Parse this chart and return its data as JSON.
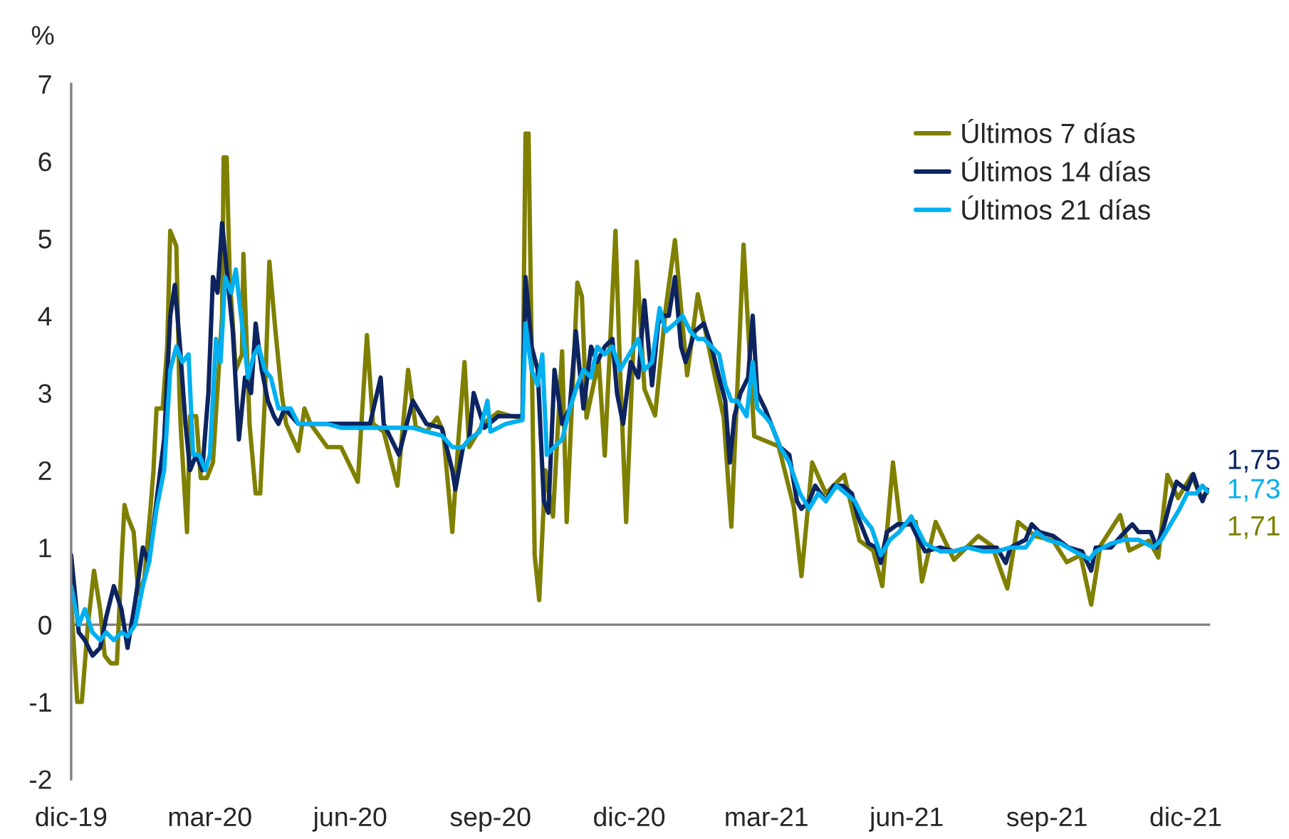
{
  "chart_data": {
    "type": "line",
    "ylabel": "%",
    "xlim": [
      "2019-12-01",
      "2021-12-17"
    ],
    "ylim": [
      -2,
      7
    ],
    "yticks": [
      -2,
      -1,
      0,
      1,
      2,
      3,
      4,
      5,
      6,
      7
    ],
    "xticks": [
      {
        "value": "2019-12-01",
        "label": "dic-19"
      },
      {
        "value": "2020-03-01",
        "label": "mar-20"
      },
      {
        "value": "2020-06-01",
        "label": "jun-20"
      },
      {
        "value": "2020-09-01",
        "label": "sep-20"
      },
      {
        "value": "2020-12-01",
        "label": "dic-20"
      },
      {
        "value": "2021-03-01",
        "label": "mar-21"
      },
      {
        "value": "2021-06-01",
        "label": "jun-21"
      },
      {
        "value": "2021-09-01",
        "label": "sep-21"
      },
      {
        "value": "2021-12-01",
        "label": "dic-21"
      }
    ],
    "grid": false,
    "ref_lines": [
      {
        "axis": "y",
        "value": 0,
        "color": "#7f7f7f",
        "line_style": "solid"
      }
    ],
    "legend": "top right",
    "line_style": "solid",
    "marker": "none",
    "series": [
      {
        "name": "Últimos 7 días",
        "color": "#7f7f00",
        "x": [
          "2019-12-01",
          "2019-12-05",
          "2019-12-08",
          "2019-12-12",
          "2019-12-16",
          "2019-12-20",
          "2019-12-23",
          "2019-12-27",
          "2019-12-31",
          "2020-01-03",
          "2020-01-05",
          "2020-01-07",
          "2020-01-11",
          "2020-01-14",
          "2020-01-18",
          "2020-01-22",
          "2020-01-24",
          "2020-01-26",
          "2020-01-30",
          "2020-02-02",
          "2020-02-04",
          "2020-02-08",
          "2020-02-10",
          "2020-02-11",
          "2020-02-15",
          "2020-02-17",
          "2020-02-21",
          "2020-02-24",
          "2020-02-28",
          "2020-03-03",
          "2020-03-09",
          "2020-03-10",
          "2020-03-12",
          "2020-03-14",
          "2020-03-18",
          "2020-03-22",
          "2020-03-23",
          "2020-03-27",
          "2020-03-31",
          "2020-04-03",
          "2020-04-06",
          "2020-04-09",
          "2020-04-13",
          "2020-04-17",
          "2020-04-20",
          "2020-04-28",
          "2020-05-02",
          "2020-05-06",
          "2020-05-17",
          "2020-05-26",
          "2020-06-06",
          "2020-06-12",
          "2020-06-16",
          "2020-06-23",
          "2020-07-02",
          "2020-07-09",
          "2020-07-14",
          "2020-07-21",
          "2020-07-28",
          "2020-08-01",
          "2020-08-07",
          "2020-08-11",
          "2020-08-15",
          "2020-08-18",
          "2020-08-27",
          "2020-09-06",
          "2020-09-15",
          "2020-09-22",
          "2020-09-24",
          "2020-09-26",
          "2020-09-27",
          "2020-09-30",
          "2020-10-03",
          "2020-10-07",
          "2020-10-12",
          "2020-10-18",
          "2020-10-21",
          "2020-10-28",
          "2020-10-31",
          "2020-11-03",
          "2020-11-11",
          "2020-11-15",
          "2020-11-22",
          "2020-11-25",
          "2020-11-29",
          "2020-12-06",
          "2020-12-11",
          "2020-12-18",
          "2020-12-25",
          "2020-12-31",
          "2021-01-08",
          "2021-01-15",
          "2021-01-24",
          "2021-02-01",
          "2021-02-06",
          "2021-02-14",
          "2021-02-21",
          "2021-03-09",
          "2021-03-19",
          "2021-03-24",
          "2021-03-31",
          "2021-04-09",
          "2021-04-21",
          "2021-05-01",
          "2021-05-10",
          "2021-05-16",
          "2021-05-23",
          "2021-05-28",
          "2021-06-07",
          "2021-06-11",
          "2021-06-20",
          "2021-07-02",
          "2021-07-18",
          "2021-07-27",
          "2021-08-06",
          "2021-08-13",
          "2021-08-24",
          "2021-09-05",
          "2021-09-14",
          "2021-09-23",
          "2021-09-30",
          "2021-10-06",
          "2021-10-19",
          "2021-10-25",
          "2021-11-07",
          "2021-11-13",
          "2021-11-19",
          "2021-11-26",
          "2021-12-05",
          "2021-12-11",
          "2021-12-15"
        ],
        "values": [
          0.3,
          -1.0,
          -1.0,
          0.0,
          0.7,
          0.2,
          -0.4,
          -0.5,
          -0.5,
          0.8,
          1.55,
          1.4,
          1.2,
          0.4,
          0.6,
          1.5,
          2.0,
          2.8,
          2.8,
          3.6,
          5.1,
          4.9,
          3.0,
          2.5,
          1.2,
          2.7,
          2.7,
          1.9,
          1.9,
          2.1,
          4.0,
          6.05,
          6.05,
          4.5,
          3.3,
          3.5,
          4.8,
          2.6,
          1.7,
          1.7,
          2.9,
          4.7,
          3.8,
          3.0,
          2.6,
          2.25,
          2.8,
          2.6,
          2.3,
          2.3,
          1.85,
          3.75,
          2.6,
          2.5,
          1.8,
          3.3,
          2.56,
          2.5,
          2.68,
          2.5,
          1.2,
          2.4,
          3.4,
          2.3,
          2.6,
          2.75,
          2.7,
          2.68,
          6.36,
          6.36,
          4.95,
          0.9,
          0.32,
          2.0,
          1.4,
          3.54,
          1.33,
          4.43,
          4.25,
          2.68,
          3.42,
          2.19,
          5.1,
          3.3,
          1.33,
          4.7,
          3.05,
          2.71,
          4.1,
          4.98,
          3.23,
          4.28,
          3.42,
          2.68,
          1.27,
          4.92,
          2.44,
          2.31,
          1.52,
          0.63,
          2.1,
          1.7,
          1.94,
          1.09,
          0.96,
          0.5,
          2.1,
          1.27,
          1.33,
          0.56,
          1.33,
          0.84,
          1.15,
          1.02,
          0.47,
          1.33,
          1.15,
          1.09,
          0.81,
          0.9,
          0.26,
          1.02,
          1.42,
          0.96,
          1.09,
          0.87,
          1.94,
          1.64,
          1.94,
          1.64,
          1.71
        ]
      },
      {
        "name": "Últimos 14 días",
        "color": "#0d2460",
        "x": [
          "2019-12-01",
          "2019-12-06",
          "2019-12-10",
          "2019-12-15",
          "2019-12-20",
          "2019-12-24",
          "2019-12-29",
          "2020-01-03",
          "2020-01-07",
          "2020-01-12",
          "2020-01-17",
          "2020-01-21",
          "2020-01-26",
          "2020-01-31",
          "2020-02-04",
          "2020-02-07",
          "2020-02-10",
          "2020-02-14",
          "2020-02-17",
          "2020-02-21",
          "2020-02-25",
          "2020-02-29",
          "2020-03-03",
          "2020-03-06",
          "2020-03-09",
          "2020-03-13",
          "2020-03-16",
          "2020-03-20",
          "2020-03-24",
          "2020-03-28",
          "2020-03-31",
          "2020-04-04",
          "2020-04-08",
          "2020-04-12",
          "2020-04-15",
          "2020-04-19",
          "2020-04-28",
          "2020-05-08",
          "2020-06-14",
          "2020-06-21",
          "2020-06-23",
          "2020-07-03",
          "2020-07-12",
          "2020-07-21",
          "2020-07-31",
          "2020-08-07",
          "2020-08-09",
          "2020-08-14",
          "2020-08-18",
          "2020-08-21",
          "2020-08-28",
          "2020-09-06",
          "2020-09-15",
          "2020-09-22",
          "2020-09-24",
          "2020-09-28",
          "2020-10-02",
          "2020-10-06",
          "2020-10-09",
          "2020-10-13",
          "2020-10-18",
          "2020-10-23",
          "2020-10-27",
          "2020-11-01",
          "2020-11-06",
          "2020-11-10",
          "2020-11-15",
          "2020-11-20",
          "2020-11-23",
          "2020-11-27",
          "2020-12-02",
          "2020-12-07",
          "2020-12-11",
          "2020-12-16",
          "2020-12-20",
          "2020-12-23",
          "2020-12-27",
          "2020-12-31",
          "2021-01-04",
          "2021-01-07",
          "2021-01-13",
          "2021-01-19",
          "2021-01-24",
          "2021-01-29",
          "2021-02-02",
          "2021-02-05",
          "2021-02-08",
          "2021-02-12",
          "2021-02-17",
          "2021-02-20",
          "2021-02-23",
          "2021-02-28",
          "2021-03-04",
          "2021-03-10",
          "2021-03-16",
          "2021-03-21",
          "2021-03-24",
          "2021-03-29",
          "2021-04-02",
          "2021-04-09",
          "2021-04-14",
          "2021-04-20",
          "2021-04-26",
          "2021-04-30",
          "2021-05-07",
          "2021-05-12",
          "2021-05-15",
          "2021-05-19",
          "2021-05-26",
          "2021-06-04",
          "2021-06-09",
          "2021-06-13",
          "2021-06-23",
          "2021-07-02",
          "2021-07-11",
          "2021-07-21",
          "2021-07-30",
          "2021-08-05",
          "2021-08-08",
          "2021-08-18",
          "2021-08-22",
          "2021-08-27",
          "2021-09-05",
          "2021-09-15",
          "2021-09-24",
          "2021-09-30",
          "2021-10-03",
          "2021-10-13",
          "2021-10-22",
          "2021-10-27",
          "2021-10-31",
          "2021-11-08",
          "2021-11-12",
          "2021-11-17",
          "2021-11-21",
          "2021-11-25",
          "2021-11-28",
          "2021-12-02",
          "2021-12-06",
          "2021-12-10",
          "2021-12-12",
          "2021-12-15"
        ],
        "values": [
          0.9,
          -0.1,
          -0.2,
          -0.4,
          -0.3,
          0.1,
          0.5,
          0.2,
          -0.3,
          0.3,
          1.0,
          0.8,
          1.6,
          2.4,
          4.0,
          4.4,
          3.7,
          2.6,
          2.0,
          2.2,
          2.0,
          3.0,
          4.5,
          4.3,
          5.2,
          4.4,
          3.8,
          2.4,
          3.2,
          3.0,
          3.9,
          3.3,
          2.9,
          2.7,
          2.6,
          2.8,
          2.6,
          2.6,
          2.6,
          3.2,
          2.6,
          2.2,
          2.9,
          2.6,
          2.55,
          2.0,
          1.75,
          2.3,
          2.4,
          3.0,
          2.55,
          2.7,
          2.7,
          2.7,
          4.5,
          3.6,
          3.3,
          1.6,
          1.45,
          3.3,
          2.6,
          2.8,
          3.8,
          2.8,
          3.6,
          3.4,
          3.6,
          3.7,
          3.0,
          2.6,
          3.4,
          3.2,
          4.2,
          3.1,
          3.9,
          4.0,
          4.0,
          4.5,
          3.6,
          3.4,
          3.8,
          3.9,
          3.6,
          3.2,
          2.9,
          2.1,
          2.7,
          3.0,
          3.2,
          4.0,
          3.0,
          2.8,
          2.6,
          2.3,
          2.2,
          1.6,
          1.5,
          1.6,
          1.8,
          1.6,
          1.8,
          1.8,
          1.7,
          1.4,
          1.05,
          1.0,
          0.8,
          1.2,
          1.3,
          1.3,
          1.1,
          0.95,
          1.0,
          0.95,
          1.0,
          1.0,
          1.0,
          0.8,
          1.0,
          1.1,
          1.3,
          1.2,
          1.15,
          1.0,
          0.95,
          0.7,
          1.0,
          1.0,
          1.2,
          1.3,
          1.2,
          1.2,
          1.0,
          1.3,
          1.6,
          1.85,
          1.8,
          1.75,
          1.95,
          1.7,
          1.6,
          1.75
        ]
      },
      {
        "name": "Últimos 21 días",
        "color": "#00b0f0",
        "x": [
          "2019-12-01",
          "2019-12-06",
          "2019-12-10",
          "2019-12-15",
          "2019-12-20",
          "2019-12-24",
          "2019-12-29",
          "2020-01-03",
          "2020-01-07",
          "2020-01-12",
          "2020-01-17",
          "2020-01-21",
          "2020-01-26",
          "2020-01-31",
          "2020-02-04",
          "2020-02-08",
          "2020-02-12",
          "2020-02-16",
          "2020-02-19",
          "2020-02-23",
          "2020-02-27",
          "2020-03-01",
          "2020-03-05",
          "2020-03-08",
          "2020-03-11",
          "2020-03-15",
          "2020-03-18",
          "2020-03-22",
          "2020-03-26",
          "2020-03-30",
          "2020-04-02",
          "2020-04-06",
          "2020-04-10",
          "2020-04-15",
          "2020-04-23",
          "2020-04-28",
          "2020-05-08",
          "2020-05-17",
          "2020-05-26",
          "2020-06-05",
          "2020-06-14",
          "2020-06-23",
          "2020-07-03",
          "2020-07-12",
          "2020-07-21",
          "2020-07-31",
          "2020-08-07",
          "2020-08-14",
          "2020-08-18",
          "2020-08-25",
          "2020-08-30",
          "2020-09-01",
          "2020-09-11",
          "2020-09-22",
          "2020-09-24",
          "2020-09-28",
          "2020-10-02",
          "2020-10-05",
          "2020-10-08",
          "2020-10-13",
          "2020-10-18",
          "2020-10-23",
          "2020-10-28",
          "2020-11-01",
          "2020-11-06",
          "2020-11-10",
          "2020-11-15",
          "2020-11-20",
          "2020-11-25",
          "2020-12-01",
          "2020-12-07",
          "2020-12-11",
          "2020-12-16",
          "2020-12-21",
          "2020-12-25",
          "2020-12-31",
          "2021-01-05",
          "2021-01-10",
          "2021-01-15",
          "2021-01-19",
          "2021-01-24",
          "2021-01-29",
          "2021-02-02",
          "2021-02-06",
          "2021-02-10",
          "2021-02-16",
          "2021-02-20",
          "2021-02-23",
          "2021-02-28",
          "2021-03-04",
          "2021-03-10",
          "2021-03-16",
          "2021-03-23",
          "2021-03-29",
          "2021-04-04",
          "2021-04-09",
          "2021-04-16",
          "2021-04-22",
          "2021-04-28",
          "2021-05-03",
          "2021-05-09",
          "2021-05-15",
          "2021-05-21",
          "2021-05-27",
          "2021-06-04",
          "2021-06-13",
          "2021-06-23",
          "2021-07-02",
          "2021-07-11",
          "2021-07-21",
          "2021-07-30",
          "2021-08-08",
          "2021-08-18",
          "2021-08-25",
          "2021-09-01",
          "2021-09-10",
          "2021-09-19",
          "2021-09-29",
          "2021-10-03",
          "2021-10-13",
          "2021-10-22",
          "2021-10-31",
          "2021-11-10",
          "2021-11-15",
          "2021-11-21",
          "2021-11-27",
          "2021-12-02",
          "2021-12-08",
          "2021-12-12",
          "2021-12-15"
        ],
        "values": [
          0.5,
          0.0,
          0.2,
          -0.1,
          -0.2,
          -0.1,
          -0.2,
          -0.1,
          -0.15,
          0.0,
          0.5,
          0.8,
          1.5,
          2.0,
          3.3,
          3.6,
          3.4,
          3.5,
          2.2,
          2.2,
          2.0,
          2.2,
          3.7,
          3.4,
          4.5,
          4.3,
          4.6,
          3.9,
          3.2,
          3.5,
          3.6,
          3.3,
          3.2,
          2.8,
          2.8,
          2.6,
          2.6,
          2.6,
          2.55,
          2.55,
          2.55,
          2.55,
          2.55,
          2.55,
          2.5,
          2.45,
          2.3,
          2.3,
          2.4,
          2.5,
          2.9,
          2.5,
          2.6,
          2.65,
          3.9,
          3.3,
          3.1,
          3.5,
          2.2,
          2.3,
          2.4,
          2.8,
          3.1,
          3.3,
          3.2,
          3.6,
          3.5,
          3.6,
          3.3,
          3.5,
          3.7,
          3.3,
          3.4,
          4.1,
          3.8,
          3.9,
          4.0,
          3.8,
          3.7,
          3.7,
          3.6,
          3.5,
          3.1,
          2.9,
          2.9,
          2.7,
          3.4,
          2.8,
          2.7,
          2.6,
          2.3,
          2.1,
          1.7,
          1.5,
          1.7,
          1.6,
          1.8,
          1.7,
          1.6,
          1.4,
          1.25,
          0.9,
          1.1,
          1.2,
          1.4,
          1.05,
          0.95,
          0.95,
          1.0,
          0.95,
          0.95,
          1.0,
          1.0,
          1.2,
          1.1,
          1.05,
          0.95,
          0.85,
          0.95,
          1.05,
          1.1,
          1.1,
          1.0,
          1.1,
          1.3,
          1.5,
          1.7,
          1.7,
          1.8,
          1.73
        ]
      }
    ],
    "annotations": [
      {
        "text": "1,75",
        "x": "2021-12-15",
        "y": 1.75
      },
      {
        "text": "1,73",
        "x": "2021-12-15",
        "y": 1.73
      },
      {
        "text": "1,71",
        "x": "2021-12-15",
        "y": 1.71
      }
    ]
  }
}
